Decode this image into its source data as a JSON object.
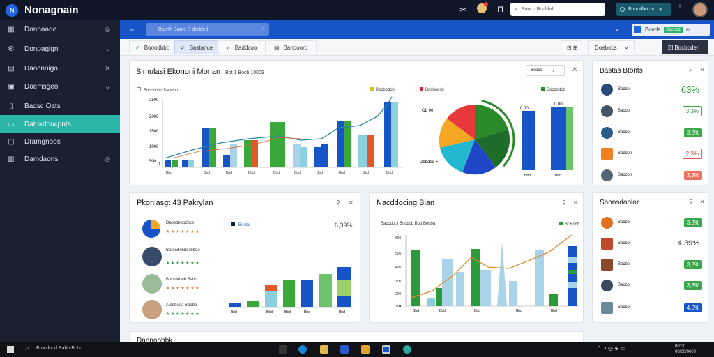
{
  "app": {
    "title": "Nonagnain"
  },
  "topbar": {
    "search_text": "Boocb Bocbbd",
    "pill_text": "Booodbocbo"
  },
  "sidebar": {
    "items": [
      {
        "label": "Donnaade",
        "icon": "grid-icon",
        "trail": "◎"
      },
      {
        "label": "Donoagign",
        "icon": "gear-icon",
        "trail": "⌄"
      },
      {
        "label": "Daocnoigo",
        "icon": "chart-icon",
        "trail": "✕"
      },
      {
        "label": "Doemsgeo",
        "icon": "folder-icon",
        "trail": "⌄"
      },
      {
        "label": "Badsc Oats",
        "icon": "card-icon",
        "trail": ""
      },
      {
        "label": "Datnkdoocpnts",
        "icon": "stack-icon",
        "trail": ""
      },
      {
        "label": "Dramgnoos",
        "icon": "window-icon",
        "trail": ""
      },
      {
        "label": "Damdaons",
        "icon": "table-icon",
        "trail": "◎"
      }
    ]
  },
  "bluebar": {
    "search_text": "Bacnh Bamc B dedded",
    "chip_text": "Bceds",
    "chip_badge": "Bocbbd"
  },
  "tabs": [
    {
      "label": "Booodbbo",
      "icon": "check-icon"
    },
    {
      "label": "Bastance",
      "icon": "check-icon"
    },
    {
      "label": "Baddcoo",
      "icon": "check-icon"
    },
    {
      "label": "Bandoorc",
      "icon": "doc-icon"
    }
  ],
  "tab_tools": {
    "btn1": "⊡ ⊞",
    "dropdown": "Doebocs",
    "export": "Bl Bocbbder"
  },
  "main_card": {
    "title": "Simulasi Ekononi  Monan",
    "subtitle": "Bot 1 Bocb 10009",
    "dropdown": "Bcocs",
    "legend": [
      "Boccbdbd Dandoo",
      "Bocbbdcb",
      "Bocbodcb"
    ],
    "left_ticks": [
      "2500",
      "2000",
      "1500",
      "1000",
      "500",
      "0"
    ],
    "pie_labels": [
      "Ob 00",
      "Dobdec +"
    ],
    "right_bar_labels": [
      "0,00",
      "0,00"
    ]
  },
  "stats_top": {
    "title": "Bastas Btonts",
    "rows": [
      {
        "name": "Bacbo",
        "value": "63%"
      },
      {
        "name": "Bacbo",
        "value": "3,3%"
      },
      {
        "name": "Bacbo",
        "value": "3,3%"
      },
      {
        "name": "Bacbon",
        "value": "2,3%"
      },
      {
        "name": "Bacbon",
        "value": "3,3%"
      }
    ]
  },
  "ranking_card": {
    "title": "Pkonlasgt 43 Pakrylan",
    "top_pct": "6,39%",
    "legend_label": "Bocbd",
    "rows": [
      "Daosdebbdbcs",
      "Barnedcbdecbbde",
      "Bursdobeb Babo",
      "Aldeboaa Bbaba"
    ]
  },
  "funding_card": {
    "title": "Nacddocing Bian",
    "legend": [
      "Bacodo 3 Bocbcb Bbo Bocba",
      "B/ Bocb"
    ],
    "ticks": [
      "600",
      "500",
      "400",
      "300",
      "200",
      "100",
      "0"
    ]
  },
  "stats_bottom": {
    "title": "Shonsdoolor",
    "rows": [
      {
        "name": "Bacbo",
        "value": "3,3%"
      },
      {
        "name": "Bacbo",
        "value": "4,39%"
      },
      {
        "name": "Bacbo",
        "value": "3,3%"
      },
      {
        "name": "Bacbo",
        "value": "3,3%"
      },
      {
        "name": "Bacbo",
        "value": "4,0%"
      }
    ]
  },
  "bottom_card": {
    "title": "Dannoobbk"
  },
  "taskbar": {
    "search_text": "Brocdood Babb Bcbd"
  },
  "colors": {
    "blue": "#1654c8",
    "teal": "#2bb5a8",
    "green": "#34a832",
    "red": "#e04a3c",
    "orange": "#f5a623",
    "navy": "#0f1729"
  }
}
